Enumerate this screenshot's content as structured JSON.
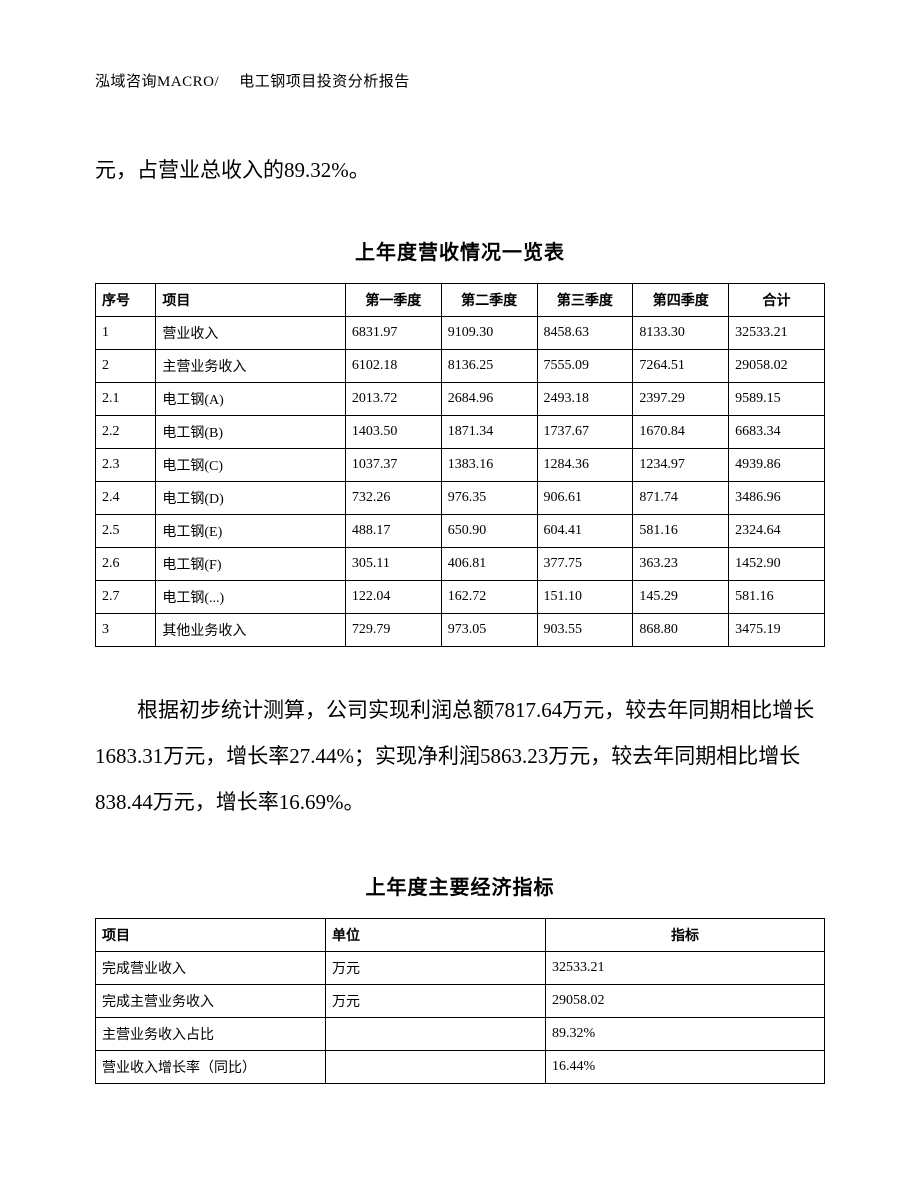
{
  "header": {
    "company": "泓域咨询MACRO/",
    "doctitle": "电工钢项目投资分析报告"
  },
  "intro": "元，占营业总收入的89.32%。",
  "table1": {
    "title": "上年度营收情况一览表",
    "headers": [
      "序号",
      "项目",
      "第一季度",
      "第二季度",
      "第三季度",
      "第四季度",
      "合计"
    ],
    "rows": [
      [
        "1",
        "营业收入",
        "6831.97",
        "9109.30",
        "8458.63",
        "8133.30",
        "32533.21"
      ],
      [
        "2",
        "主营业务收入",
        "6102.18",
        "8136.25",
        "7555.09",
        "7264.51",
        "29058.02"
      ],
      [
        "2.1",
        "电工钢(A)",
        "2013.72",
        "2684.96",
        "2493.18",
        "2397.29",
        "9589.15"
      ],
      [
        "2.2",
        "电工钢(B)",
        "1403.50",
        "1871.34",
        "1737.67",
        "1670.84",
        "6683.34"
      ],
      [
        "2.3",
        "电工钢(C)",
        "1037.37",
        "1383.16",
        "1284.36",
        "1234.97",
        "4939.86"
      ],
      [
        "2.4",
        "电工钢(D)",
        "732.26",
        "976.35",
        "906.61",
        "871.74",
        "3486.96"
      ],
      [
        "2.5",
        "电工钢(E)",
        "488.17",
        "650.90",
        "604.41",
        "581.16",
        "2324.64"
      ],
      [
        "2.6",
        "电工钢(F)",
        "305.11",
        "406.81",
        "377.75",
        "363.23",
        "1452.90"
      ],
      [
        "2.7",
        "电工钢(...)",
        "122.04",
        "162.72",
        "151.10",
        "145.29",
        "581.16"
      ],
      [
        "3",
        "其他业务收入",
        "729.79",
        "973.05",
        "903.55",
        "868.80",
        "3475.19"
      ]
    ]
  },
  "body_para": "根据初步统计测算，公司实现利润总额7817.64万元，较去年同期相比增长1683.31万元，增长率27.44%；实现净利润5863.23万元，较去年同期相比增长838.44万元，增长率16.69%。",
  "table2": {
    "title": "上年度主要经济指标",
    "headers": [
      "项目",
      "单位",
      "指标"
    ],
    "rows": [
      [
        "完成营业收入",
        "万元",
        "32533.21"
      ],
      [
        "完成主营业务收入",
        "万元",
        "29058.02"
      ],
      [
        "主营业务收入占比",
        "",
        "89.32%"
      ],
      [
        "营业收入增长率（同比）",
        "",
        "16.44%"
      ]
    ]
  }
}
